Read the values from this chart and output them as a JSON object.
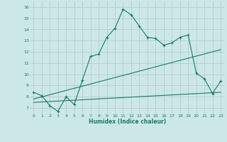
{
  "xlabel": "Humidex (Indice chaleur)",
  "bg_color": "#cce8e6",
  "line_color": "#1a7a6e",
  "grid_color": "#b0c8c6",
  "xlim": [
    -0.5,
    23.5
  ],
  "ylim": [
    6.5,
    16.5
  ],
  "xticks": [
    0,
    1,
    2,
    3,
    4,
    5,
    6,
    7,
    8,
    9,
    10,
    11,
    12,
    13,
    14,
    15,
    16,
    17,
    18,
    19,
    20,
    21,
    22,
    23
  ],
  "yticks": [
    7,
    8,
    9,
    10,
    11,
    12,
    13,
    14,
    15,
    16
  ],
  "line1_x": [
    0,
    1,
    2,
    3,
    4,
    5,
    6,
    7,
    8,
    9,
    10,
    11,
    12,
    13,
    14,
    15,
    16,
    17,
    18,
    19,
    20,
    21,
    22,
    23
  ],
  "line1_y": [
    8.4,
    8.1,
    7.2,
    6.7,
    8.0,
    7.3,
    9.5,
    11.6,
    11.8,
    13.3,
    14.1,
    15.8,
    15.3,
    14.3,
    13.3,
    13.2,
    12.6,
    12.8,
    13.3,
    13.5,
    10.1,
    9.6,
    8.3,
    9.4
  ],
  "line2_x": [
    0,
    23
  ],
  "line2_y": [
    7.8,
    12.2
  ],
  "line3_x": [
    0,
    23
  ],
  "line3_y": [
    7.5,
    8.4
  ]
}
